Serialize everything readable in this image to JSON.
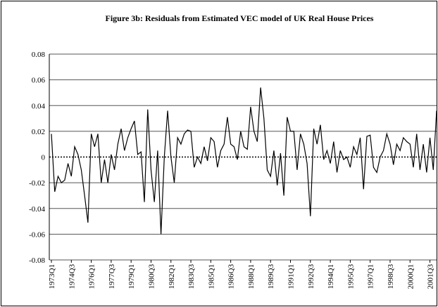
{
  "chart_data": {
    "type": "line",
    "title": "Figure 3b: Residuals from Estimated VEC model of UK Real House Prices",
    "categories": [
      "1973Q1",
      null,
      null,
      null,
      null,
      null,
      "1974Q3",
      null,
      null,
      null,
      null,
      null,
      "1976Q1",
      null,
      null,
      null,
      null,
      null,
      "1977Q3",
      null,
      null,
      null,
      null,
      null,
      "1979Q1",
      null,
      null,
      null,
      null,
      null,
      "1980Q3",
      null,
      null,
      null,
      null,
      null,
      "1982Q1",
      null,
      null,
      null,
      null,
      null,
      "1983Q3",
      null,
      null,
      null,
      null,
      null,
      "1985Q1",
      null,
      null,
      null,
      null,
      null,
      "1986Q3",
      null,
      null,
      null,
      null,
      null,
      "1988Q1",
      null,
      null,
      null,
      null,
      null,
      "1989Q3",
      null,
      null,
      null,
      null,
      null,
      "1991Q1",
      null,
      null,
      null,
      null,
      null,
      "1992Q3",
      null,
      null,
      null,
      null,
      null,
      "1994Q1",
      null,
      null,
      null,
      null,
      null,
      "1995Q3",
      null,
      null,
      null,
      null,
      null,
      "1997Q1",
      null,
      null,
      null,
      null,
      null,
      "1998Q3",
      null,
      null,
      null,
      null,
      null,
      "2000Q1",
      null,
      null,
      null,
      null,
      null,
      "2001Q3",
      null,
      null
    ],
    "values": [
      0.018,
      -0.027,
      -0.015,
      -0.02,
      -0.018,
      -0.005,
      -0.015,
      0.008,
      0.002,
      -0.01,
      -0.03,
      -0.051,
      0.018,
      0.008,
      0.018,
      -0.02,
      -0.002,
      -0.02,
      0.002,
      -0.01,
      0.01,
      0.022,
      0.005,
      0.015,
      0.022,
      0.028,
      0.002,
      0.004,
      -0.035,
      0.037,
      -0.01,
      -0.035,
      0.005,
      -0.06,
      0.0,
      0.036,
      0.0,
      -0.02,
      0.015,
      0.01,
      0.018,
      0.021,
      0.02,
      -0.008,
      0.0,
      -0.005,
      0.008,
      -0.003,
      0.015,
      0.012,
      -0.008,
      0.005,
      0.01,
      0.031,
      0.01,
      0.008,
      -0.002,
      0.02,
      0.008,
      0.006,
      0.039,
      0.02,
      0.012,
      0.054,
      0.03,
      -0.01,
      -0.015,
      0.005,
      -0.022,
      0.003,
      -0.03,
      0.031,
      0.02,
      0.02,
      -0.01,
      0.018,
      0.01,
      -0.005,
      -0.046,
      0.022,
      0.01,
      0.025,
      -0.002,
      0.005,
      -0.005,
      0.012,
      -0.012,
      0.005,
      -0.002,
      0.0,
      -0.008,
      0.008,
      0.002,
      0.015,
      -0.025,
      0.016,
      0.017,
      -0.008,
      -0.012,
      0.0,
      0.005,
      0.018,
      0.01,
      -0.006,
      0.01,
      0.005,
      0.015,
      0.012,
      0.01,
      -0.008,
      0.018,
      -0.01,
      0.01,
      -0.012,
      0.015,
      -0.01,
      0.036
    ],
    "color": "#000000",
    "ylim": [
      -0.08,
      0.08
    ],
    "yticks": [
      -0.08,
      -0.06,
      -0.04,
      -0.02,
      0,
      0.02,
      0.04,
      0.06,
      0.08
    ],
    "grid": true
  }
}
